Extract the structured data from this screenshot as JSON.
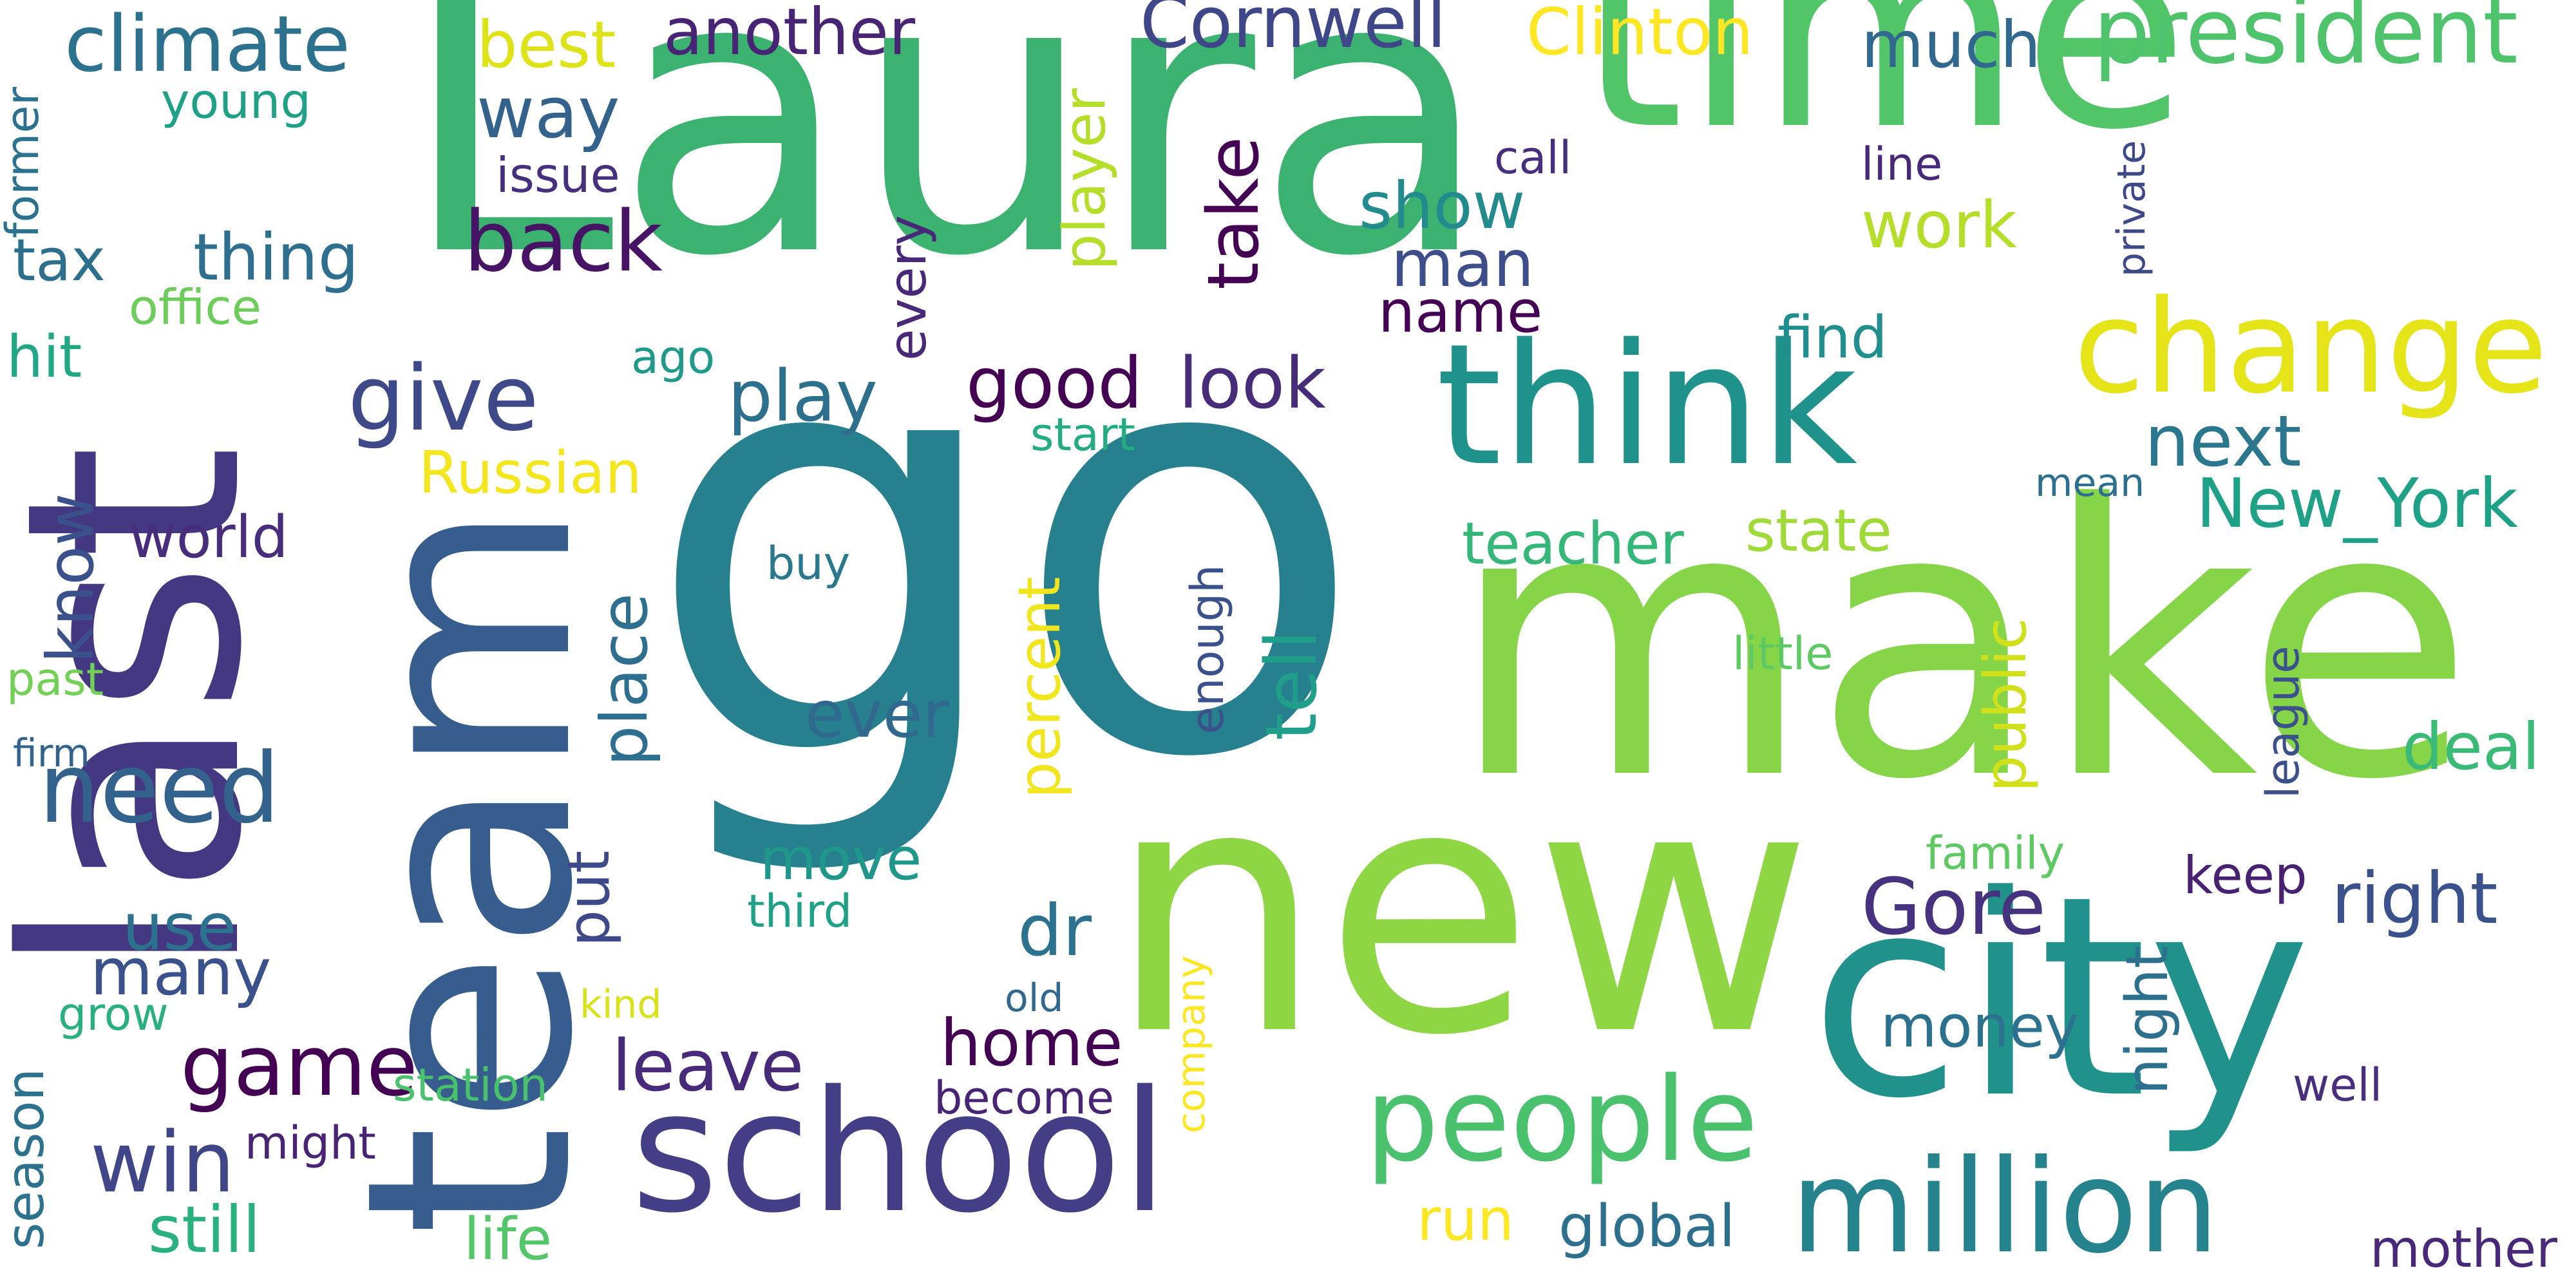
{
  "words": [
    {
      "text": "Laura",
      "color": "#3bb26f"
    },
    {
      "text": "go",
      "color": "#26808e"
    },
    {
      "text": "make",
      "color": "#86d549"
    },
    {
      "text": "new",
      "color": "#8fd644"
    },
    {
      "text": "last",
      "color": "#453882"
    },
    {
      "text": "team",
      "color": "#365d8d"
    },
    {
      "text": "time",
      "color": "#52c569"
    },
    {
      "text": "city",
      "color": "#21918c"
    },
    {
      "text": "think",
      "color": "#20928c"
    },
    {
      "text": "school",
      "color": "#433e85"
    },
    {
      "text": "change",
      "color": "#e5e419"
    },
    {
      "text": "million",
      "color": "#25838e"
    },
    {
      "text": "people",
      "color": "#4ac16d"
    },
    {
      "text": "president",
      "color": "#4ec36b"
    },
    {
      "text": "need",
      "color": "#33638d"
    },
    {
      "text": "give",
      "color": "#3e4989"
    },
    {
      "text": "climate",
      "color": "#2c728e"
    },
    {
      "text": "Cornwell",
      "color": "#3f4788"
    },
    {
      "text": "Gore",
      "color": "#46327e"
    },
    {
      "text": "right",
      "color": "#3b518b"
    },
    {
      "text": "New_York",
      "color": "#1fa188"
    },
    {
      "text": "game",
      "color": "#440154"
    },
    {
      "text": "win",
      "color": "#404688"
    },
    {
      "text": "back",
      "color": "#471365"
    },
    {
      "text": "thing",
      "color": "#2e6e8e"
    },
    {
      "text": "way",
      "color": "#33638d"
    },
    {
      "text": "another",
      "color": "#482475"
    },
    {
      "text": "Clinton",
      "color": "#fde725"
    },
    {
      "text": "best",
      "color": "#dde318"
    },
    {
      "text": "much",
      "color": "#31688e"
    },
    {
      "text": "show",
      "color": "#238a8d"
    },
    {
      "text": "man",
      "color": "#3d4e8a"
    },
    {
      "text": "name",
      "color": "#440154"
    },
    {
      "text": "work",
      "color": "#b5de2b"
    },
    {
      "text": "find",
      "color": "#218f8d"
    },
    {
      "text": "next",
      "color": "#2a778e"
    },
    {
      "text": "play",
      "color": "#2d708e"
    },
    {
      "text": "good",
      "color": "#440154"
    },
    {
      "text": "look",
      "color": "#472c7a"
    },
    {
      "text": "Russian",
      "color": "#f4e61e"
    },
    {
      "text": "world",
      "color": "#472d7b"
    },
    {
      "text": "teacher",
      "color": "#35b779"
    },
    {
      "text": "state",
      "color": "#a0da39"
    },
    {
      "text": "ever",
      "color": "#31688e"
    },
    {
      "text": "move",
      "color": "#1f988b"
    },
    {
      "text": "dr",
      "color": "#2c728e"
    },
    {
      "text": "home",
      "color": "#440154"
    },
    {
      "text": "leave",
      "color": "#472a7a"
    },
    {
      "text": "money",
      "color": "#2c728e"
    },
    {
      "text": "keep",
      "color": "#482173"
    },
    {
      "text": "deal",
      "color": "#3aba76"
    },
    {
      "text": "use",
      "color": "#2c728e"
    },
    {
      "text": "many",
      "color": "#3b518b"
    },
    {
      "text": "still",
      "color": "#2ab07f"
    },
    {
      "text": "life",
      "color": "#54c568"
    },
    {
      "text": "run",
      "color": "#fde725"
    },
    {
      "text": "global",
      "color": "#2d708e"
    },
    {
      "text": "mother",
      "color": "#482878"
    },
    {
      "text": "tax",
      "color": "#2d708e"
    },
    {
      "text": "hit",
      "color": "#22a785"
    },
    {
      "text": "office",
      "color": "#6ccd5a"
    },
    {
      "text": "young",
      "color": "#1fa188"
    },
    {
      "text": "issue",
      "color": "#46307e"
    },
    {
      "text": "call",
      "color": "#46307e"
    },
    {
      "text": "line",
      "color": "#482878"
    },
    {
      "text": "ago",
      "color": "#1f9a8a"
    },
    {
      "text": "start",
      "color": "#25ab82"
    },
    {
      "text": "mean",
      "color": "#2d708e"
    },
    {
      "text": "buy",
      "color": "#2a788e"
    },
    {
      "text": "little",
      "color": "#5ec962"
    },
    {
      "text": "past",
      "color": "#73d056"
    },
    {
      "text": "firm",
      "color": "#33638d"
    },
    {
      "text": "grow",
      "color": "#2ab07f"
    },
    {
      "text": "family",
      "color": "#5ec962"
    },
    {
      "text": "third",
      "color": "#1fa188"
    },
    {
      "text": "old",
      "color": "#31688e"
    },
    {
      "text": "become",
      "color": "#482475"
    },
    {
      "text": "kind",
      "color": "#d8e219"
    },
    {
      "text": "station",
      "color": "#4ac16d"
    },
    {
      "text": "might",
      "color": "#482475"
    },
    {
      "text": "well",
      "color": "#472f7d"
    },
    {
      "text": "take",
      "color": "#440154"
    },
    {
      "text": "player",
      "color": "#b5de2b"
    },
    {
      "text": "every",
      "color": "#482878"
    },
    {
      "text": "tell",
      "color": "#1f9e89"
    },
    {
      "text": "place",
      "color": "#2e6e8e"
    },
    {
      "text": "put",
      "color": "#3e4989"
    },
    {
      "text": "percent",
      "color": "#f1e51d"
    },
    {
      "text": "public",
      "color": "#d0e11c"
    },
    {
      "text": "night",
      "color": "#2d708e"
    },
    {
      "text": "enough",
      "color": "#3b518b"
    },
    {
      "text": "company",
      "color": "#fde725"
    },
    {
      "text": "league",
      "color": "#3b518b"
    },
    {
      "text": "private",
      "color": "#3e4989"
    },
    {
      "text": "know",
      "color": "#3b518b"
    },
    {
      "text": "former",
      "color": "#2c728e"
    },
    {
      "text": "season",
      "color": "#2c728e"
    }
  ]
}
